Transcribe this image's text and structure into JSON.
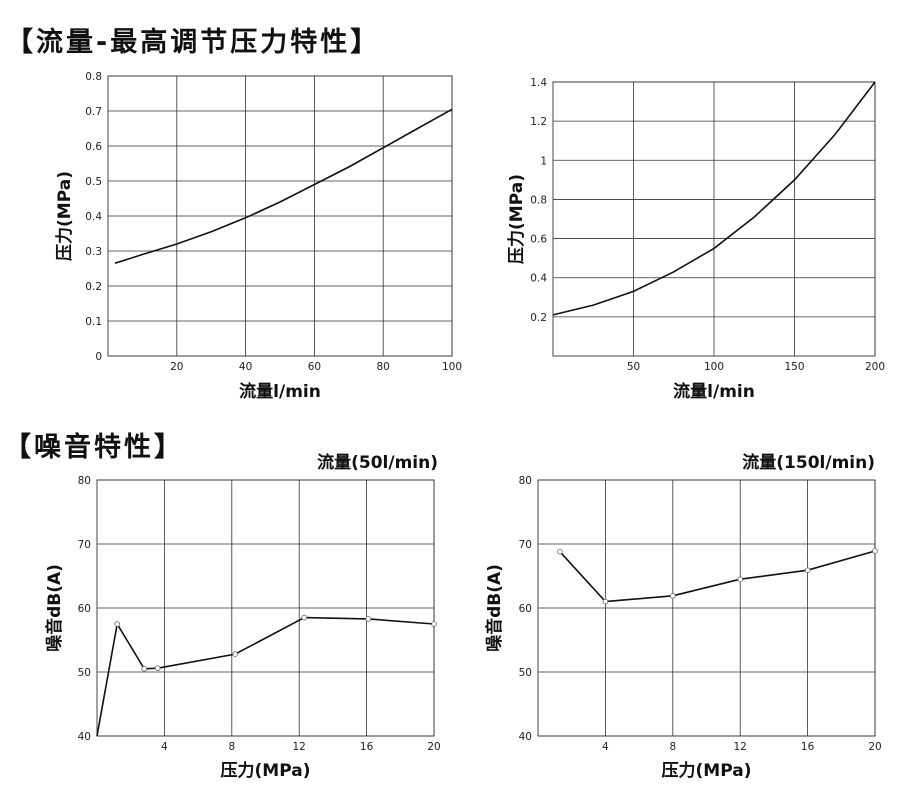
{
  "sections": {
    "flow_title": "【流量-最高调节压力特性】",
    "noise_title": "【噪音特性】"
  },
  "chart_data": [
    {
      "id": "c1",
      "type": "line",
      "title": "",
      "xlabel": "流量l/min",
      "ylabel": "压力(MPa)",
      "xlim": [
        0,
        100
      ],
      "ylim": [
        0,
        0.8
      ],
      "xticks": [
        20,
        40,
        60,
        80,
        100
      ],
      "yticks": [
        0,
        0.1,
        0.2,
        0.3,
        0.4,
        0.5,
        0.6,
        0.7,
        0.8
      ],
      "grid": true,
      "series": [
        {
          "x": [
            2,
            10,
            20,
            30,
            40,
            50,
            60,
            70,
            80,
            90,
            100
          ],
          "y": [
            0.265,
            0.29,
            0.32,
            0.355,
            0.395,
            0.44,
            0.49,
            0.54,
            0.595,
            0.65,
            0.705
          ]
        }
      ]
    },
    {
      "id": "c2",
      "type": "line",
      "title": "",
      "xlabel": "流量l/min",
      "ylabel": "压力(MPa)",
      "xlim": [
        0,
        200
      ],
      "ylim": [
        0,
        1.4
      ],
      "xticks": [
        50,
        100,
        150,
        200
      ],
      "yticks": [
        0.2,
        0.4,
        0.6,
        0.8,
        1.0,
        1.2,
        1.4
      ],
      "grid": true,
      "series": [
        {
          "x": [
            0,
            25,
            50,
            75,
            100,
            125,
            150,
            175,
            200
          ],
          "y": [
            0.21,
            0.26,
            0.33,
            0.43,
            0.55,
            0.71,
            0.9,
            1.13,
            1.4
          ]
        }
      ]
    },
    {
      "id": "c3",
      "type": "line",
      "title": "流量(50l/min)",
      "xlabel": "压力(MPa)",
      "ylabel": "噪音dB(A)",
      "xlim": [
        0,
        20
      ],
      "ylim": [
        40,
        80
      ],
      "xticks": [
        4,
        8,
        12,
        16,
        20
      ],
      "yticks": [
        40,
        50,
        60,
        70,
        80
      ],
      "grid": true,
      "series": [
        {
          "x": [
            0,
            1.2,
            2.8,
            3.6,
            8.2,
            12.3,
            16.1,
            20
          ],
          "y": [
            40,
            57.5,
            50.5,
            50.6,
            52.8,
            58.5,
            58.3,
            57.5
          ],
          "markers": [
            1,
            2,
            3,
            4,
            5,
            6,
            7
          ]
        }
      ]
    },
    {
      "id": "c4",
      "type": "line",
      "title": "流量(150l/min)",
      "xlabel": "压力(MPa)",
      "ylabel": "噪音dB(A)",
      "xlim": [
        0,
        20
      ],
      "ylim": [
        40,
        80
      ],
      "xticks": [
        4,
        8,
        12,
        16,
        20
      ],
      "yticks": [
        40,
        50,
        60,
        70,
        80
      ],
      "grid": true,
      "series": [
        {
          "x": [
            1.3,
            4,
            8,
            12,
            16,
            20
          ],
          "y": [
            68.8,
            61,
            61.9,
            64.5,
            65.9,
            68.9
          ],
          "markers": [
            0,
            1,
            2,
            3,
            4,
            5
          ]
        }
      ]
    }
  ]
}
